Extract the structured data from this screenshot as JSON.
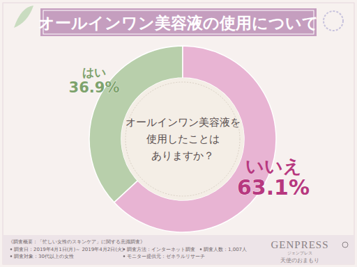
{
  "chart_data": {
    "type": "pie",
    "title": "オールインワン美容液の使用について",
    "categories": [
      "はい",
      "いいえ"
    ],
    "values": [
      36.9,
      63.1
    ],
    "value_labels": [
      "36.9%",
      "63.1%"
    ],
    "colors": [
      "#b8cfab",
      "#e8b4d3"
    ],
    "data_labels": true,
    "annotations": [
      "オールインワン美容液を",
      "使用したことは",
      "ありますか？"
    ]
  },
  "footer": {
    "heading": "《調査概要：「忙しい女性のスキンケア」に関する意識調査》",
    "items": [
      [
        "調査日：2019年4月1日(月)～ 2019年4月2日(火)",
        "調査方法：インターネット調査",
        "調査人数：1,007人"
      ],
      [
        "調査対象：30代以上の女性",
        "モニター提供元：ゼネラルリサーチ"
      ]
    ]
  },
  "logo": {
    "name": "GENPRESS",
    "reading": "ジェンプレス",
    "tagline": "天使のおまもり"
  }
}
